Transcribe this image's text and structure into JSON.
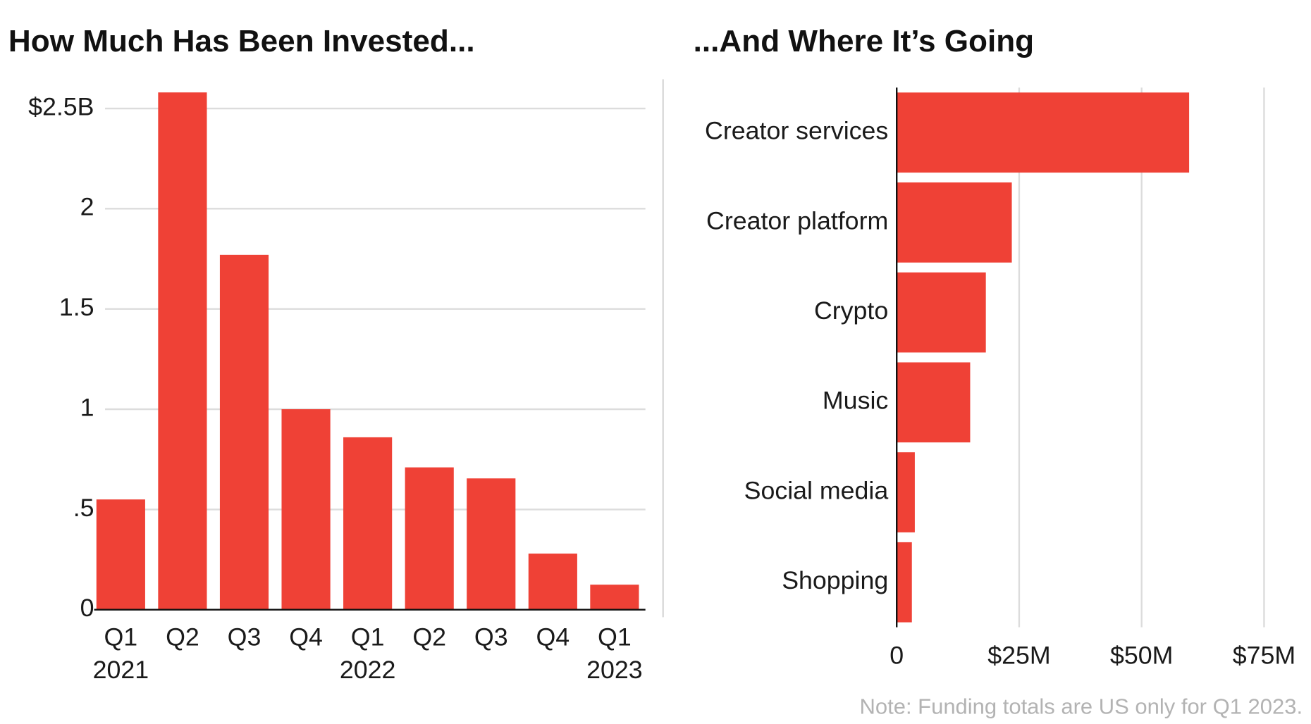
{
  "chart_data": [
    {
      "type": "bar",
      "title": "How Much Has Been Invested...",
      "categories": [
        "Q1",
        "Q2",
        "Q3",
        "Q4",
        "Q1",
        "Q2",
        "Q3",
        "Q4",
        "Q1"
      ],
      "x_group_labels": [
        "2021",
        null,
        null,
        null,
        "2022",
        null,
        null,
        null,
        "2023"
      ],
      "values": [
        0.55,
        2.58,
        1.77,
        1.0,
        0.86,
        0.71,
        0.655,
        0.28,
        0.125
      ],
      "color": "#ef4136",
      "ylim": [
        0,
        2.6
      ],
      "yticks": [
        {
          "value": 0,
          "label": "0"
        },
        {
          "value": 0.5,
          "label": ".5"
        },
        1,
        1.5,
        2,
        {
          "value": 2.5,
          "label": "$2.5B"
        }
      ],
      "grid": true
    },
    {
      "type": "barh",
      "title": "...And Where It’s Going",
      "categories": [
        "Creator services",
        "Creator platform",
        "Crypto",
        "Music",
        "Social media",
        "Shopping"
      ],
      "values": [
        59.7,
        23.5,
        18.2,
        15,
        3.7,
        3.1
      ],
      "color": "#ef4136",
      "xlim": [
        0,
        76
      ],
      "xticks": [
        0,
        {
          "value": 25,
          "label": "$25M"
        },
        {
          "value": 50,
          "label": "$50M"
        },
        {
          "value": 75,
          "label": "$75M"
        }
      ],
      "grid": true,
      "note": "Note: Funding totals are US only for Q1 2023."
    }
  ]
}
